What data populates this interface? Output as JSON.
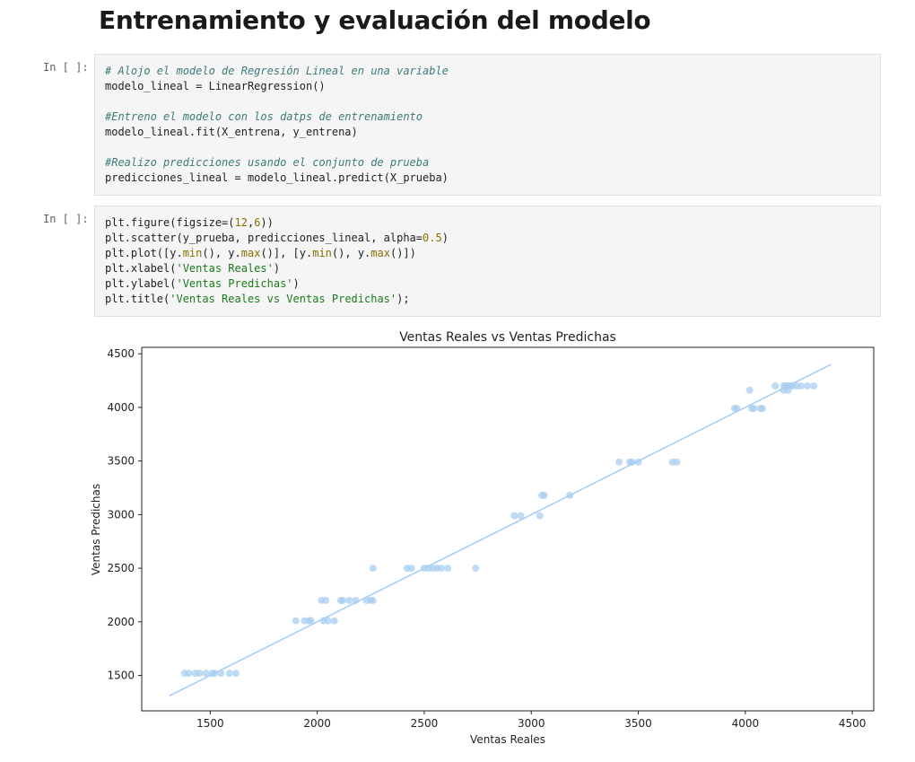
{
  "heading": "Entrenamiento y evaluación del modelo",
  "cells": [
    {
      "prompt": "In [ ]:",
      "lines": [
        [
          {
            "t": "# Alojo el modelo de Regresión Lineal en una variable",
            "c": "cm"
          }
        ],
        [
          {
            "t": "modelo_lineal = LinearRegression()"
          }
        ],
        [
          {
            "t": ""
          }
        ],
        [
          {
            "t": "#Entreno el modelo con los datps de entrenamiento",
            "c": "cm"
          }
        ],
        [
          {
            "t": "modelo_lineal.fit(X_entrena, y_entrena)"
          }
        ],
        [
          {
            "t": ""
          }
        ],
        [
          {
            "t": "#Realizo predicciones usando el conjunto de prueba",
            "c": "cm"
          }
        ],
        [
          {
            "t": "predicciones_lineal = modelo_lineal.predict(X_prueba)"
          }
        ]
      ]
    },
    {
      "prompt": "In [ ]:",
      "lines": [
        [
          {
            "t": "plt.figure(figsize=("
          },
          {
            "t": "12",
            "c": "nm"
          },
          {
            "t": ","
          },
          {
            "t": "6",
            "c": "nm"
          },
          {
            "t": "))"
          }
        ],
        [
          {
            "t": "plt.scatter(y_prueba, predicciones_lineal, alpha="
          },
          {
            "t": "0.5",
            "c": "nm"
          },
          {
            "t": ")"
          }
        ],
        [
          {
            "t": "plt.plot([y."
          },
          {
            "t": "min",
            "c": "fn"
          },
          {
            "t": "(), y."
          },
          {
            "t": "max",
            "c": "fn"
          },
          {
            "t": "()], [y."
          },
          {
            "t": "min",
            "c": "fn"
          },
          {
            "t": "(), y."
          },
          {
            "t": "max",
            "c": "fn"
          },
          {
            "t": "()])"
          }
        ],
        [
          {
            "t": "plt.xlabel("
          },
          {
            "t": "'Ventas Reales'",
            "c": "st"
          },
          {
            "t": ")"
          }
        ],
        [
          {
            "t": "plt.ylabel("
          },
          {
            "t": "'Ventas Predichas'",
            "c": "st"
          },
          {
            "t": ")"
          }
        ],
        [
          {
            "t": "plt.title("
          },
          {
            "t": "'Ventas Reales vs Ventas Predichas'",
            "c": "st"
          },
          {
            "t": ");"
          }
        ]
      ]
    }
  ],
  "chart_data": {
    "type": "scatter",
    "title": "Ventas Reales vs Ventas Predichas",
    "xlabel": "Ventas Reales",
    "ylabel": "Ventas Predichas",
    "xlim": [
      1180,
      4600
    ],
    "ylim": [
      1170,
      4560
    ],
    "xticks": [
      1500,
      2000,
      2500,
      3000,
      3500,
      4000,
      4500
    ],
    "yticks": [
      1500,
      2000,
      2500,
      3000,
      3500,
      4000,
      4500
    ],
    "grid": false,
    "colors": {
      "points": "#a9cdf0",
      "line": "#a9cdf0"
    },
    "series": [
      {
        "kind": "points",
        "x": [
          1380,
          1400,
          1430,
          1450,
          1480,
          1510,
          1520,
          1550,
          1590,
          1620,
          1900,
          1940,
          1960,
          1970,
          2030,
          2050,
          2080,
          2020,
          2110,
          2150,
          2180,
          2230,
          2250,
          2260,
          2040,
          2120,
          2420,
          2440,
          2500,
          2520,
          2540,
          2560,
          2580,
          2610,
          2740,
          2260,
          2920,
          2950,
          3040,
          3050,
          3060,
          3180,
          3410,
          3460,
          3470,
          3500,
          3660,
          3680,
          3950,
          3960,
          4030,
          4040,
          4070,
          4080,
          4020,
          4140,
          4180,
          4190,
          4200,
          4210,
          4220,
          4240,
          4260,
          4290,
          4320,
          4180,
          4200
        ],
        "y": [
          1520,
          1520,
          1520,
          1520,
          1520,
          1520,
          1520,
          1520,
          1520,
          1520,
          2010,
          2010,
          2010,
          2010,
          2010,
          2010,
          2010,
          2200,
          2200,
          2200,
          2200,
          2200,
          2200,
          2200,
          2200,
          2200,
          2500,
          2500,
          2500,
          2500,
          2500,
          2500,
          2500,
          2500,
          2500,
          2500,
          2990,
          2990,
          2990,
          3180,
          3180,
          3180,
          3490,
          3490,
          3490,
          3490,
          3490,
          3490,
          3990,
          3990,
          3990,
          3990,
          3990,
          3990,
          4160,
          4200,
          4200,
          4200,
          4200,
          4200,
          4200,
          4200,
          4200,
          4200,
          4200,
          4160,
          4160
        ]
      },
      {
        "kind": "line",
        "x": [
          1310,
          4400
        ],
        "y": [
          1310,
          4400
        ]
      }
    ]
  }
}
